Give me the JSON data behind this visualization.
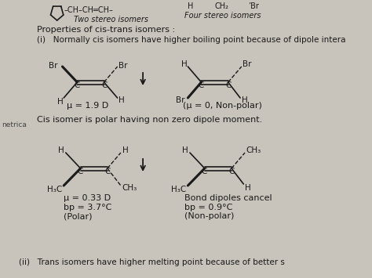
{
  "bg_color": "#c8c3bb",
  "text_color": "#1a1a1a",
  "title_line1": "Properties of cis-trans isomers :",
  "point_i_text": "Normally cis isomers have higher boiling point because of dipole intera",
  "cis_statement": "Cis isomer is polar having non zero dipole moment.",
  "point_ii_text": "Trans isomers have higher melting point because of better s",
  "mu_left1": "μ = 1.9 D",
  "mu_right1": "(μ = 0, Non-polar)",
  "mu_left2": "μ = 0.33 D\nbp = 3.7°C\n(Polar)",
  "mu_right2": "Bond dipoles cancel\nbp = 0.9°C\n(Non-polar)",
  "figsize": [
    4.74,
    3.55
  ],
  "dpi": 100
}
